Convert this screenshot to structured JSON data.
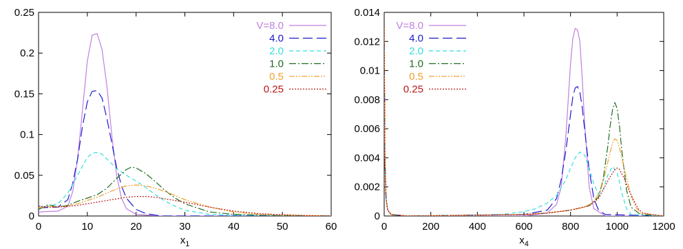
{
  "chart_data": [
    {
      "type": "line",
      "xlabel": "x",
      "xlabel_sub": "1",
      "ylabel": "",
      "xlim": [
        0,
        60
      ],
      "ylim": [
        0,
        0.25
      ],
      "xticks": [
        0,
        10,
        20,
        30,
        40,
        50,
        60
      ],
      "xtick_labels": [
        "0",
        "10",
        "20",
        "30",
        "40",
        "50",
        "60"
      ],
      "yticks": [
        0,
        0.05,
        0.1,
        0.15,
        0.2,
        0.25
      ],
      "ytick_labels": [
        "0",
        "0.05",
        "0.1",
        "0.15",
        "0.2",
        "0.25"
      ],
      "grid": false,
      "legend": "top-right",
      "series": [
        {
          "name": "V=8.0",
          "color": "#c07fe0",
          "dash": "",
          "x": [
            0,
            4,
            6,
            7,
            8,
            9,
            10,
            11,
            12,
            13,
            14,
            15,
            16,
            17,
            18,
            20,
            25,
            30,
            60
          ],
          "y": [
            0.005,
            0.006,
            0.012,
            0.03,
            0.07,
            0.13,
            0.19,
            0.222,
            0.224,
            0.205,
            0.16,
            0.1,
            0.05,
            0.022,
            0.009,
            0.002,
            0,
            0,
            0
          ]
        },
        {
          "name": "4.0",
          "color": "#1a1acc",
          "dash": "14,6",
          "x": [
            0,
            4,
            6,
            7,
            8,
            9,
            10,
            11,
            12,
            13,
            14,
            15,
            16,
            17,
            18,
            20,
            22,
            25,
            60
          ],
          "y": [
            0.01,
            0.011,
            0.02,
            0.04,
            0.07,
            0.11,
            0.14,
            0.153,
            0.154,
            0.145,
            0.12,
            0.09,
            0.06,
            0.037,
            0.022,
            0.008,
            0.003,
            0,
            0
          ]
        },
        {
          "name": "2.0",
          "color": "#33dddd",
          "dash": "6,4",
          "x": [
            0,
            2,
            4,
            6,
            8,
            10,
            11,
            12,
            13,
            14,
            16,
            18,
            20,
            22,
            24,
            26,
            28,
            30,
            35,
            40,
            60
          ],
          "y": [
            0.012,
            0.012,
            0.015,
            0.028,
            0.05,
            0.072,
            0.077,
            0.078,
            0.076,
            0.07,
            0.058,
            0.05,
            0.043,
            0.035,
            0.026,
            0.018,
            0.012,
            0.007,
            0.002,
            0.001,
            0
          ]
        },
        {
          "name": "1.0",
          "color": "#1e6a1e",
          "dash": "10,3,2,3",
          "x": [
            0,
            2,
            4,
            6,
            8,
            10,
            12,
            14,
            16,
            18,
            19,
            20,
            22,
            24,
            26,
            28,
            30,
            35,
            40,
            45,
            60
          ],
          "y": [
            0.008,
            0.014,
            0.011,
            0.013,
            0.018,
            0.022,
            0.026,
            0.034,
            0.046,
            0.057,
            0.06,
            0.059,
            0.052,
            0.042,
            0.031,
            0.022,
            0.015,
            0.005,
            0.002,
            0.001,
            0
          ]
        },
        {
          "name": "0.5",
          "color": "#f0a030",
          "dash": "8,2,2,2,2,2",
          "x": [
            0,
            2,
            4,
            6,
            8,
            10,
            12,
            14,
            16,
            18,
            20,
            22,
            24,
            26,
            28,
            30,
            35,
            40,
            45,
            50,
            60
          ],
          "y": [
            0.01,
            0.012,
            0.011,
            0.012,
            0.015,
            0.019,
            0.023,
            0.028,
            0.033,
            0.037,
            0.038,
            0.037,
            0.034,
            0.03,
            0.025,
            0.02,
            0.011,
            0.005,
            0.002,
            0.001,
            0
          ]
        },
        {
          "name": "0.25",
          "color": "#b81818",
          "dash": "2,2",
          "x": [
            0,
            2,
            4,
            6,
            8,
            10,
            12,
            14,
            16,
            18,
            20,
            22,
            24,
            26,
            28,
            30,
            35,
            40,
            45,
            50,
            55,
            60
          ],
          "y": [
            0.012,
            0.011,
            0.011,
            0.012,
            0.013,
            0.015,
            0.017,
            0.019,
            0.021,
            0.023,
            0.024,
            0.024,
            0.023,
            0.021,
            0.019,
            0.017,
            0.011,
            0.006,
            0.003,
            0.0015,
            0.0006,
            0.0002
          ]
        }
      ]
    },
    {
      "type": "line",
      "xlabel": "x",
      "xlabel_sub": "4",
      "ylabel": "",
      "xlim": [
        0,
        1200
      ],
      "ylim": [
        0,
        0.014
      ],
      "xticks": [
        0,
        200,
        400,
        600,
        800,
        1000,
        1200
      ],
      "xtick_labels": [
        "0",
        "200",
        "400",
        "600",
        "800",
        "1000",
        "1200"
      ],
      "yticks": [
        0,
        0.002,
        0.004,
        0.006,
        0.008,
        0.01,
        0.012,
        0.014
      ],
      "ytick_labels": [
        "0",
        "0.002",
        "0.004",
        "0.006",
        "0.008",
        "0.01",
        "0.012",
        "0.014"
      ],
      "grid": false,
      "legend": "top-left",
      "series": [
        {
          "name": "V=8.0",
          "color": "#c07fe0",
          "dash": "",
          "x": [
            0,
            3,
            8,
            15,
            30,
            100,
            600,
            700,
            740,
            760,
            780,
            800,
            810,
            820,
            830,
            840,
            850,
            860,
            880,
            900,
            950,
            1200
          ],
          "y": [
            0.013,
            0.004,
            0.0012,
            0.0004,
            0.0001,
            0,
            0,
            0.0002,
            0.0008,
            0.002,
            0.0055,
            0.0105,
            0.0122,
            0.0129,
            0.0128,
            0.012,
            0.0095,
            0.0065,
            0.002,
            0.0005,
            0,
            0
          ]
        },
        {
          "name": "4.0",
          "color": "#1a1acc",
          "dash": "14,6",
          "x": [
            0,
            3,
            8,
            15,
            30,
            100,
            600,
            700,
            740,
            760,
            780,
            800,
            810,
            820,
            830,
            840,
            850,
            860,
            880,
            900,
            920,
            950,
            1200
          ],
          "y": [
            0.013,
            0.004,
            0.0012,
            0.0004,
            0.0001,
            0,
            0.0001,
            0.0004,
            0.0012,
            0.0025,
            0.0045,
            0.007,
            0.0082,
            0.0088,
            0.0089,
            0.0085,
            0.0075,
            0.006,
            0.0032,
            0.0012,
            0.0004,
            0.0001,
            0
          ]
        },
        {
          "name": "2.0",
          "color": "#33dddd",
          "dash": "6,4",
          "x": [
            0,
            3,
            8,
            15,
            30,
            100,
            500,
            600,
            650,
            700,
            740,
            780,
            800,
            820,
            840,
            860,
            880,
            900,
            920,
            940,
            960,
            980,
            1000,
            1020,
            1040,
            1060,
            1200
          ],
          "y": [
            0.013,
            0.004,
            0.0012,
            0.0004,
            0.0001,
            0,
            0.0001,
            0.0003,
            0.0005,
            0.0009,
            0.0014,
            0.0025,
            0.0033,
            0.004,
            0.0044,
            0.0042,
            0.0033,
            0.0022,
            0.0015,
            0.0018,
            0.0028,
            0.0034,
            0.003,
            0.0016,
            0.0005,
            0.0001,
            0
          ]
        },
        {
          "name": "1.0",
          "color": "#1e6a1e",
          "dash": "10,3,2,3",
          "x": [
            0,
            3,
            8,
            15,
            30,
            100,
            600,
            700,
            800,
            880,
            920,
            940,
            960,
            970,
            980,
            990,
            1000,
            1010,
            1020,
            1040,
            1060,
            1100,
            1200
          ],
          "y": [
            0.013,
            0.004,
            0.0012,
            0.0004,
            0.0001,
            0,
            0.0001,
            0.0002,
            0.0004,
            0.0007,
            0.0013,
            0.0025,
            0.0048,
            0.0062,
            0.0073,
            0.0078,
            0.0074,
            0.0062,
            0.0045,
            0.0018,
            0.0006,
            0.0001,
            0
          ]
        },
        {
          "name": "0.5",
          "color": "#f0a030",
          "dash": "8,2,2,2,2,2",
          "x": [
            0,
            3,
            8,
            15,
            30,
            100,
            600,
            700,
            800,
            860,
            900,
            930,
            950,
            970,
            980,
            990,
            1000,
            1010,
            1020,
            1040,
            1060,
            1080,
            1100,
            1200
          ],
          "y": [
            0.013,
            0.004,
            0.0012,
            0.0004,
            0.0001,
            0,
            0.0001,
            0.0002,
            0.0004,
            0.0006,
            0.001,
            0.0018,
            0.003,
            0.0044,
            0.005,
            0.0053,
            0.0052,
            0.0047,
            0.004,
            0.0026,
            0.0014,
            0.0006,
            0.0002,
            0
          ]
        },
        {
          "name": "0.25",
          "color": "#b81818",
          "dash": "2,2",
          "x": [
            0,
            3,
            8,
            15,
            30,
            100,
            600,
            700,
            800,
            880,
            920,
            950,
            970,
            990,
            1000,
            1010,
            1030,
            1050,
            1070,
            1090,
            1110,
            1150,
            1200
          ],
          "y": [
            0.013,
            0.004,
            0.0012,
            0.0004,
            0.0001,
            0,
            0.0001,
            0.0002,
            0.0004,
            0.0007,
            0.0012,
            0.0021,
            0.0027,
            0.0032,
            0.0033,
            0.0032,
            0.0026,
            0.0018,
            0.0011,
            0.0005,
            0.0002,
            0.0001,
            0
          ]
        }
      ]
    }
  ]
}
